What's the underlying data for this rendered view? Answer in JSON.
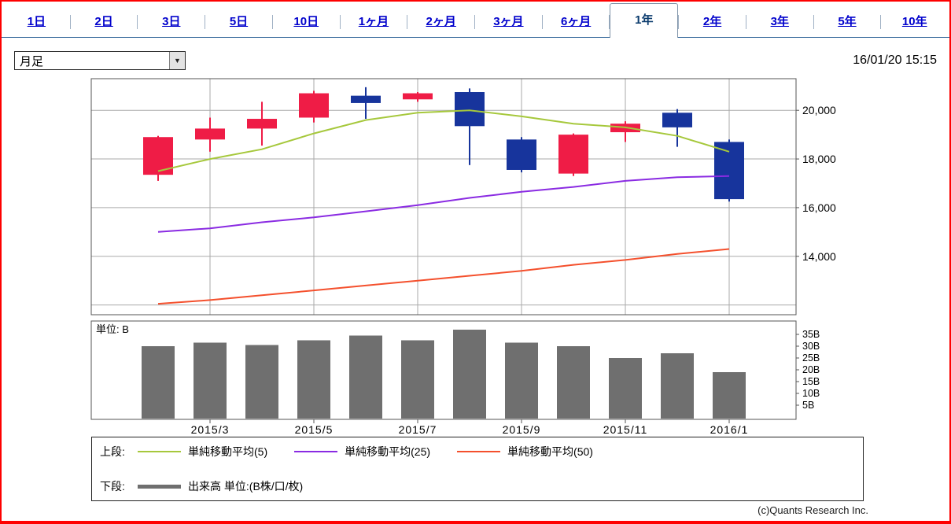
{
  "tabbar": {
    "tabs": [
      "1日",
      "2日",
      "3日",
      "5日",
      "10日",
      "1ヶ月",
      "2ヶ月",
      "3ヶ月",
      "6ヶ月",
      "1年",
      "2年",
      "3年",
      "5年",
      "10年"
    ],
    "active_index": 9,
    "active_tab": "1年"
  },
  "controls": {
    "timeframe_select": {
      "value": "月足"
    },
    "timestamp": "16/01/20 15:15"
  },
  "chart_data": {
    "type": "candlestick",
    "panels": [
      "price",
      "volume"
    ],
    "x_labels": [
      "2015/3",
      "2015/5",
      "2015/7",
      "2015/9",
      "2015/11",
      "2016/1"
    ],
    "x_label_candle_indices": [
      1,
      3,
      5,
      7,
      9,
      11
    ],
    "price_axis": {
      "range": [
        11600,
        21300
      ],
      "ticks": [
        {
          "label": "20,000",
          "value": 20000
        },
        {
          "label": "18,000",
          "value": 18000
        },
        {
          "label": "16,000",
          "value": 16000
        },
        {
          "label": "14,000",
          "value": 14000
        }
      ],
      "grid_values": [
        20000,
        18000,
        16000,
        14000,
        12000
      ]
    },
    "candles": [
      {
        "open": 17350,
        "high": 18950,
        "low": 17100,
        "close": 18900
      },
      {
        "open": 18800,
        "high": 19700,
        "low": 18300,
        "close": 19250
      },
      {
        "open": 19250,
        "high": 20350,
        "low": 18550,
        "close": 19650
      },
      {
        "open": 19700,
        "high": 20800,
        "low": 19500,
        "close": 20700
      },
      {
        "open": 20600,
        "high": 20950,
        "low": 19650,
        "close": 20300
      },
      {
        "open": 20450,
        "high": 20750,
        "low": 20350,
        "close": 20700
      },
      {
        "open": 20750,
        "high": 20900,
        "low": 17750,
        "close": 19350
      },
      {
        "open": 18800,
        "high": 18900,
        "low": 17450,
        "close": 17550
      },
      {
        "open": 17400,
        "high": 19050,
        "low": 17300,
        "close": 19000
      },
      {
        "open": 19100,
        "high": 19550,
        "low": 18700,
        "close": 19450
      },
      {
        "open": 19900,
        "high": 20050,
        "low": 18500,
        "close": 19300
      },
      {
        "open": 18700,
        "high": 18800,
        "low": 16250,
        "close": 16350
      }
    ],
    "sma": [
      {
        "name": "単純移動平均(5)",
        "color": "#a6c83c",
        "values": [
          17500,
          18000,
          18400,
          19050,
          19600,
          19900,
          20000,
          19750,
          19450,
          19300,
          18950,
          18300
        ]
      },
      {
        "name": "単純移動平均(25)",
        "color": "#8a2be2",
        "values": [
          15000,
          15150,
          15400,
          15600,
          15850,
          16100,
          16400,
          16650,
          16850,
          17100,
          17250,
          17300
        ]
      },
      {
        "name": "単純移動平均(50)",
        "color": "#f4502d",
        "values": [
          12050,
          12200,
          12400,
          12600,
          12800,
          13000,
          13200,
          13400,
          13650,
          13850,
          14100,
          14300
        ]
      }
    ],
    "volume": {
      "unit_label": "単位: B",
      "values": [
        30,
        31.5,
        30.5,
        32.5,
        34.5,
        32.5,
        37,
        31.5,
        30,
        25,
        27,
        19
      ],
      "axis_ticks": [
        {
          "label": "35B",
          "value": 35
        },
        {
          "label": "30B",
          "value": 30
        },
        {
          "label": "25B",
          "value": 25
        },
        {
          "label": "20B",
          "value": 20
        },
        {
          "label": "15B",
          "value": 15
        },
        {
          "label": "10B",
          "value": 10
        },
        {
          "label": "5B",
          "value": 5
        }
      ],
      "bar_color": "#6f6f6f"
    },
    "colors": {
      "up": "#ef1c46",
      "down": "#17349c",
      "grid": "#aaaaaa",
      "border": "#555555",
      "text": "#000000"
    }
  },
  "legend": {
    "upper_label": "上段:",
    "upper_items": [
      {
        "label": "単純移動平均(5)",
        "color": "#a6c83c"
      },
      {
        "label": "単純移動平均(25)",
        "color": "#8a2be2"
      },
      {
        "label": "単純移動平均(50)",
        "color": "#f4502d"
      }
    ],
    "lower_label": "下段:",
    "lower_items": [
      {
        "label": "出来高 単位:(B株/口/枚)",
        "color": "#6f6f6f"
      }
    ]
  },
  "footer": {
    "copyright": "(c)Quants Research Inc."
  }
}
